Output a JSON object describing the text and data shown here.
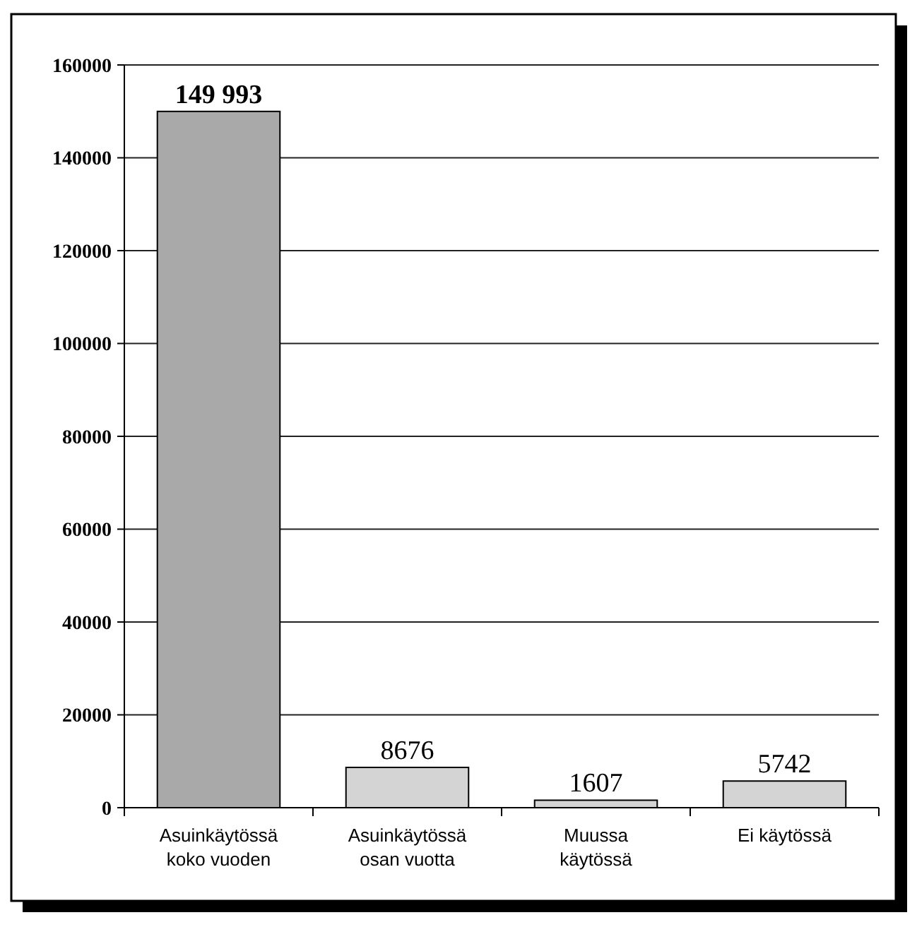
{
  "chart_data": {
    "type": "bar",
    "categories": [
      "Asuinkäytössä koko vuoden",
      "Asuinkäytössä osan vuotta",
      "Muussa käytössä",
      "Ei käytössä"
    ],
    "values": [
      149993,
      8676,
      1607,
      5742
    ],
    "colors": [
      "#a9a9a9",
      "#d4d4d4",
      "#d4d4d4",
      "#d4d4d4"
    ],
    "value_labels": [
      "149 993",
      "8676",
      "1607",
      "5742"
    ],
    "ylim": [
      0,
      160000
    ],
    "yticks": [
      0,
      20000,
      40000,
      60000,
      80000,
      100000,
      120000,
      140000,
      160000
    ],
    "grid": "y"
  }
}
